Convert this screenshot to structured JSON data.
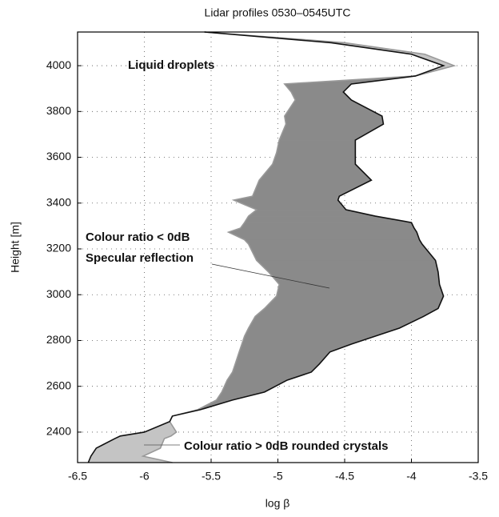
{
  "chart_data": {
    "type": "line",
    "title": "Lidar profiles 0530–0545UTC",
    "xlabel": "log β",
    "ylabel": "Height [m]",
    "xlim": [
      -6.5,
      -3.5
    ],
    "xticks": [
      -6.5,
      -6,
      -5.5,
      -5,
      -4.5,
      -4,
      -3.5
    ],
    "ylim": [
      2267,
      4147
    ],
    "yticks": [
      2400,
      2600,
      2800,
      3000,
      3200,
      3400,
      3600,
      3800,
      4000
    ],
    "grid": true,
    "y": [
      4147,
      4100,
      4050,
      4000,
      3955,
      3920,
      3885,
      3850,
      3780,
      3745,
      3675,
      3620,
      3570,
      3500,
      3430,
      3413,
      3371,
      3343,
      3315,
      3291,
      3273,
      3240,
      3221,
      3150,
      3099,
      3045,
      2994,
      2940,
      2905,
      2854,
      2819,
      2784,
      2750,
      2697,
      2662,
      2627,
      2575,
      2540,
      2498,
      2470,
      2446,
      2400,
      2383,
      2372,
      2330,
      2295,
      2267
    ],
    "series": [
      {
        "color": "#111111",
        "fill_color": "#8a8a8a",
        "values": [
          -5.55,
          -4.6,
          -4.0,
          -3.76,
          -3.97,
          -4.45,
          -4.51,
          -4.45,
          -4.22,
          -4.21,
          -4.42,
          -4.42,
          -4.42,
          -4.3,
          -4.54,
          -4.55,
          -4.49,
          -4.27,
          -4.0,
          -3.98,
          -3.96,
          -3.94,
          -3.92,
          -3.82,
          -3.8,
          -3.79,
          -3.76,
          -3.8,
          -3.91,
          -4.09,
          -4.27,
          -4.45,
          -4.61,
          -4.69,
          -4.75,
          -4.93,
          -5.1,
          -5.34,
          -5.58,
          -5.79,
          -5.81,
          -6.0,
          -6.18,
          -6.22,
          -6.36,
          -6.4,
          -6.42
        ]
      },
      {
        "color": "#999999",
        "fill_color": "#c4c4c4",
        "values": [
          -5.55,
          -4.5,
          -3.9,
          -3.68,
          -3.97,
          -4.95,
          -4.9,
          -4.87,
          -4.95,
          -4.94,
          -4.99,
          -5.01,
          -5.04,
          -5.14,
          -5.19,
          -5.33,
          -5.16,
          -5.22,
          -5.25,
          -5.28,
          -5.37,
          -5.25,
          -5.22,
          -5.16,
          -5.07,
          -4.99,
          -5.01,
          -5.1,
          -5.17,
          -5.22,
          -5.25,
          -5.27,
          -5.29,
          -5.32,
          -5.34,
          -5.38,
          -5.42,
          -5.46,
          -5.6,
          -5.79,
          -5.81,
          -5.76,
          -5.8,
          -5.85,
          -5.88,
          -6.01,
          -5.79
        ]
      }
    ],
    "annotations": [
      "Liquid droplets",
      "Colour ratio < 0dB",
      "Specular reflection",
      "Colour ratio > 0dB rounded crystals"
    ]
  }
}
